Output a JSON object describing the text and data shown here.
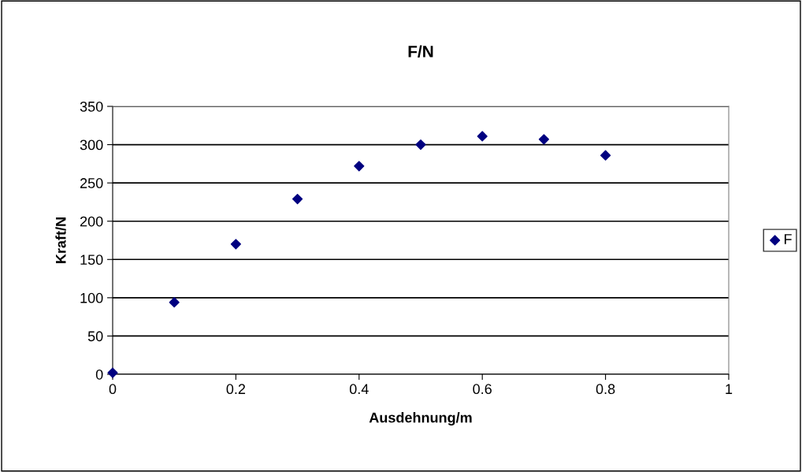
{
  "chart_data": {
    "type": "scatter",
    "title": "F/N",
    "xlabel": "Ausdehnung/m",
    "ylabel": "Kraft/N",
    "x": [
      0,
      0.1,
      0.2,
      0.3,
      0.4,
      0.5,
      0.6,
      0.7,
      0.8
    ],
    "series": [
      {
        "name": "F",
        "color": "#000080",
        "values": [
          2,
          94,
          170,
          229,
          272,
          300,
          311,
          307,
          286
        ]
      }
    ],
    "xlim": [
      0,
      1
    ],
    "xticks": [
      0,
      0.2,
      0.4,
      0.6,
      0.8,
      1
    ],
    "ylim": [
      0,
      350
    ],
    "yticks": [
      0,
      50,
      100,
      150,
      200,
      250,
      300,
      350
    ],
    "grid": "y",
    "legend": "right",
    "marker": "diamond"
  }
}
